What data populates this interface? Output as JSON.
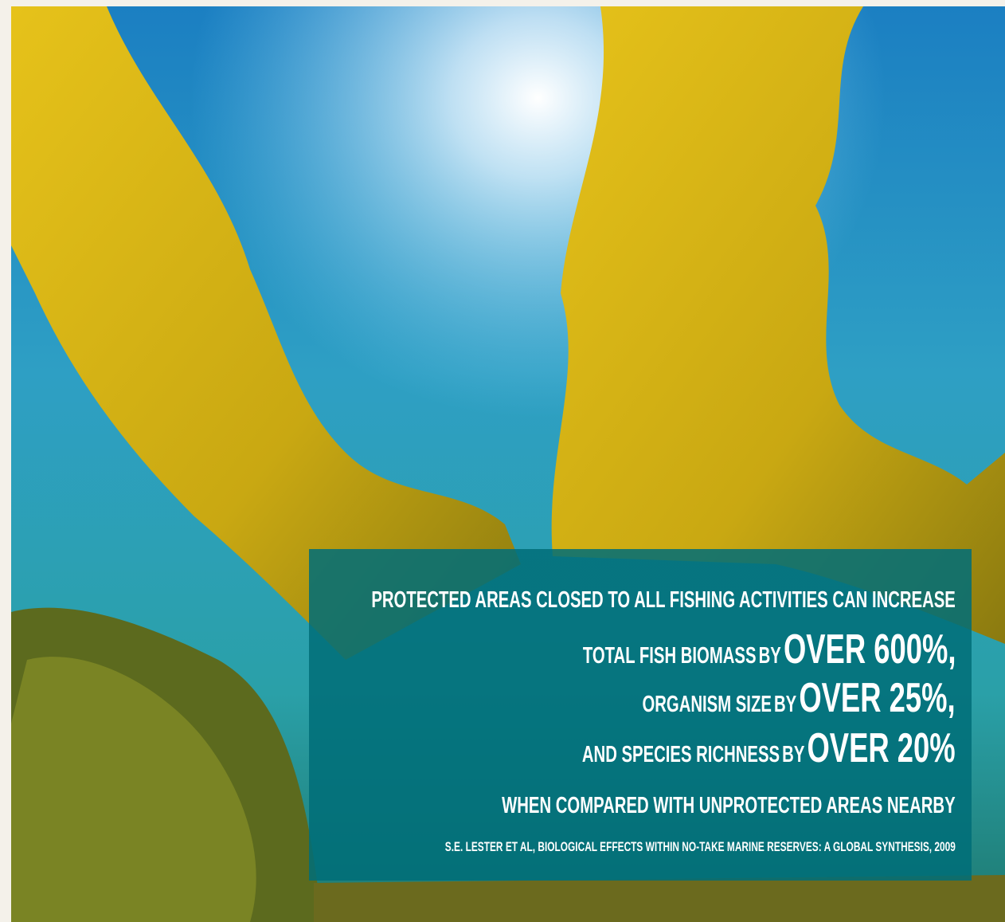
{
  "headline": "PROTECTED AREAS CLOSED TO ALL FISHING ACTIVITIES CAN INCREASE",
  "stats": [
    {
      "label": "TOTAL FISH BIOMASS",
      "connector": "BY",
      "value": "OVER 600%,"
    },
    {
      "label": "ORGANISM SIZE",
      "connector": "BY",
      "value": "OVER 25%,"
    },
    {
      "label": "AND SPECIES RICHNESS",
      "connector": "BY",
      "value": "OVER 20%"
    }
  ],
  "conclusion": "WHEN COMPARED WITH UNPROTECTED AREAS NEARBY",
  "citation": "S.E. LESTER ET AL, BIOLOGICAL EFFECTS WITHIN NO-TAKE MARINE RESERVES: A GLOBAL SYNTHESIS, 2009"
}
